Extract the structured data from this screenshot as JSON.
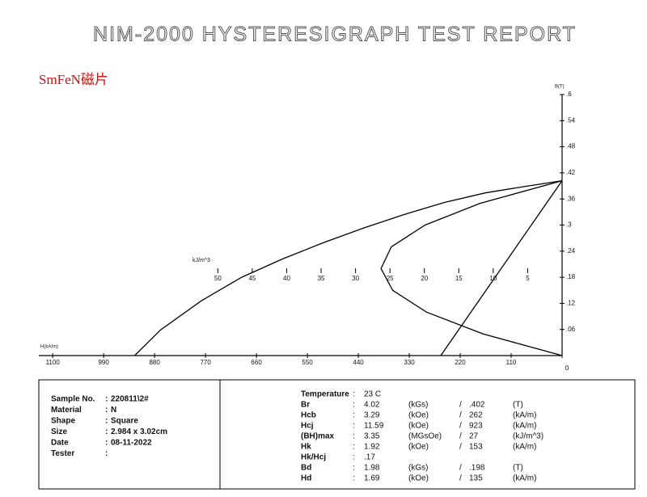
{
  "chart_data": {
    "type": "line",
    "title": "NIM-2000 HYSTERESIGRAPH TEST REPORT",
    "annotation": "SmFeN磁片",
    "xlabel": "H(kA/m)",
    "ylabel": "B(T)",
    "x2label": "kJ/m^3",
    "xlim": [
      1130,
      0
    ],
    "xticks": [
      1100,
      990,
      880,
      770,
      660,
      550,
      440,
      330,
      220,
      110,
      0
    ],
    "ylim": [
      0,
      0.6
    ],
    "yticks": [
      {
        "value": 0.06,
        "label": ".06"
      },
      {
        "value": 0.12,
        "label": ".12"
      },
      {
        "value": 0.18,
        "label": ".18"
      },
      {
        "value": 0.24,
        "label": ".24"
      },
      {
        "value": 0.3,
        "label": ".3"
      },
      {
        "value": 0.36,
        "label": ".36"
      },
      {
        "value": 0.42,
        "label": ".42"
      },
      {
        "value": 0.48,
        "label": ".48"
      },
      {
        "value": 0.54,
        "label": ".54"
      },
      {
        "value": 0.6,
        "label": ".6"
      }
    ],
    "x2lim": [
      76,
      0
    ],
    "x2ticks": [
      50,
      45,
      40,
      35,
      30,
      25,
      20,
      15,
      10,
      5
    ],
    "series": [
      {
        "color": "#000000",
        "x": [
          923,
          867,
          779,
          692,
          604,
          517,
          429,
          342,
          254,
          166,
          79,
          0
        ],
        "values": [
          0,
          0.059,
          0.126,
          0.18,
          0.222,
          0.259,
          0.293,
          0.324,
          0.352,
          0.374,
          0.389,
          0.402
        ]
      },
      {
        "color": "#000000",
        "x": [
          262,
          0
        ],
        "values": [
          0,
          0.402
        ]
      },
      {
        "color": "#000000",
        "axis": "x2",
        "x": [
          0,
          11.5,
          19.7,
          24.6,
          26.3,
          24.8,
          19.9,
          11.9,
          0
        ],
        "values": [
          0,
          0.05,
          0.1,
          0.15,
          0.2,
          0.25,
          0.3,
          0.35,
          0.402
        ]
      }
    ]
  },
  "report": {
    "sample": [
      [
        "Sample No.",
        "220811\\2#"
      ],
      [
        "Material",
        "N"
      ],
      [
        "Shape",
        "Square"
      ],
      [
        "Size",
        "2.984 x  3.02cm"
      ],
      [
        "Date",
        "08-11-2022"
      ],
      [
        "Tester",
        ""
      ]
    ],
    "parameters": [
      [
        "Temperature",
        "23 C",
        "",
        "",
        ""
      ],
      [
        "Br",
        "4.02",
        "(kGs)",
        ".402",
        "(T)"
      ],
      [
        "Hcb",
        "3.29",
        "(kOe)",
        "262",
        "(kA/m)"
      ],
      [
        "Hcj",
        "11.59",
        "(kOe)",
        "923",
        "(kA/m)"
      ],
      [
        "(BH)max",
        "3.35",
        "(MGsOe)",
        "27",
        "(kJ/m^3)"
      ],
      [
        "Hk",
        "1.92",
        "(kOe)",
        "153",
        "(kA/m)"
      ],
      [
        "Hk/Hcj",
        ".17",
        "",
        "",
        ""
      ],
      [
        "Bd",
        "1.98",
        "(kGs)",
        ".198",
        "(T)"
      ],
      [
        "Hd",
        "1.69",
        "(kOe)",
        "135",
        "(kA/m)"
      ]
    ]
  }
}
